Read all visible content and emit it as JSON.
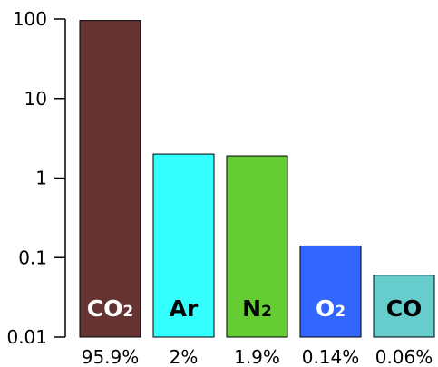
{
  "chart_data": {
    "type": "bar",
    "scale": "log",
    "ylim": [
      0.01,
      100
    ],
    "yticks": [
      "100",
      "10",
      "1",
      "0.1",
      "0.01"
    ],
    "categories": [
      {
        "formula": "CO",
        "sub": "2",
        "percent_label": "95.9%",
        "value": 95.9,
        "color": "#663333",
        "text_color": "#ffffff"
      },
      {
        "formula": "Ar",
        "sub": "",
        "percent_label": "2%",
        "value": 2,
        "color": "#33ffff",
        "text_color": "#000000"
      },
      {
        "formula": "N",
        "sub": "2",
        "percent_label": "1.9%",
        "value": 1.9,
        "color": "#66cc33",
        "text_color": "#000000"
      },
      {
        "formula": "O",
        "sub": "2",
        "percent_label": "0.14%",
        "value": 0.14,
        "color": "#3366ff",
        "text_color": "#ffffff"
      },
      {
        "formula": "CO",
        "sub": "",
        "percent_label": "0.06%",
        "value": 0.06,
        "color": "#66cccc",
        "text_color": "#000000"
      }
    ],
    "title": "",
    "xlabel": "",
    "ylabel": "",
    "grid": false
  }
}
